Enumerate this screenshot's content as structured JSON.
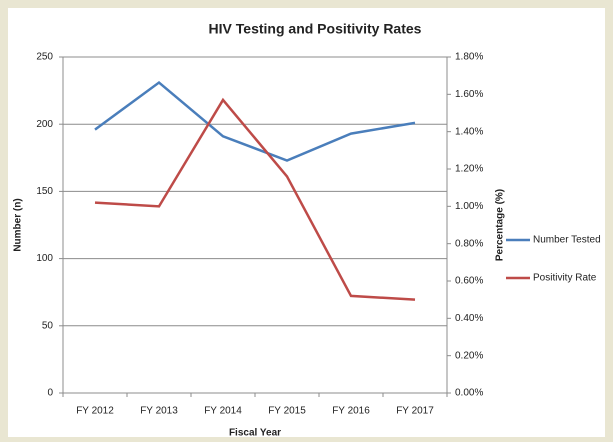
{
  "chart_data": {
    "type": "line",
    "title": "HIV Testing and Positivity Rates",
    "x_label": "Fiscal Year",
    "y_label": "Number (n)",
    "y2_label": "Percentage (%)",
    "categories": [
      "FY 2012",
      "FY 2013",
      "FY 2014",
      "FY 2015",
      "FY 2016",
      "FY 2017"
    ],
    "series": [
      {
        "name": "Number Tested",
        "color": "#4a7ebb",
        "values": [
          196,
          231,
          191,
          173,
          193,
          201
        ]
      },
      {
        "name": "Positivity Rate",
        "color": "#be4b48",
        "axis": "y2",
        "values": [
          1.02,
          1.0,
          1.57,
          1.16,
          0.52,
          0.5
        ]
      }
    ],
    "ylim": [
      0,
      250
    ],
    "yticks": [
      0,
      50,
      100,
      150,
      200,
      250
    ],
    "y2lim": [
      0,
      1.8
    ],
    "y2ticks": [
      {
        "value": 0,
        "label": "0.00%"
      },
      {
        "value": 0.2,
        "label": "0.20%"
      },
      {
        "value": 0.4,
        "label": "0.40%"
      },
      {
        "value": 0.6,
        "label": "0.60%"
      },
      {
        "value": 0.8,
        "label": "0.80%"
      },
      {
        "value": 1.0,
        "label": "1.00%"
      },
      {
        "value": 1.2,
        "label": "1.20%"
      },
      {
        "value": 1.4,
        "label": "1.40%"
      },
      {
        "value": 1.6,
        "label": "1.60%"
      },
      {
        "value": 1.8,
        "label": "1.80%"
      }
    ],
    "grid": true,
    "legend": "right"
  }
}
